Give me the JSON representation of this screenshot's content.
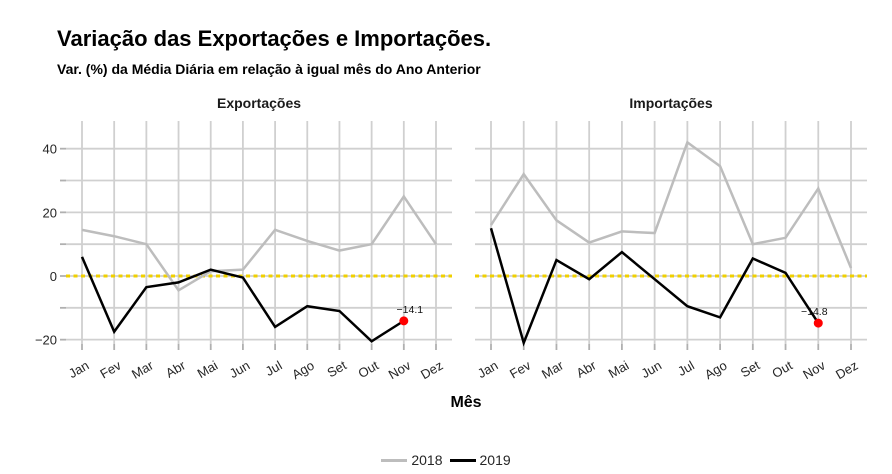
{
  "title": "Variação das Exportações e Importações.",
  "subtitle": "Var. (%) da Média Diária em relação à igual mês do Ano Anterior",
  "chart_data": {
    "type": "line",
    "categories": [
      "Jan",
      "Fev",
      "Mar",
      "Abr",
      "Mai",
      "Jun",
      "Jul",
      "Ago",
      "Set",
      "Out",
      "Nov",
      "Dez"
    ],
    "xlabel": "Mês",
    "facets": [
      {
        "label": "Exportações",
        "series": [
          {
            "name": "2018",
            "values": [
              14.5,
              12.5,
              10,
              -4.5,
              1.5,
              2,
              14.5,
              11,
              8,
              10,
              25,
              10
            ]
          },
          {
            "name": "2019",
            "values": [
              6,
              -17.5,
              -3.5,
              -2,
              2,
              -0.5,
              -16,
              -9.5,
              -11,
              -20.5,
              -14.1,
              null
            ]
          }
        ],
        "highlight": {
          "month": "Nov",
          "series": "2019",
          "value": -14.1,
          "label": "−14.1"
        }
      },
      {
        "label": "Importações",
        "series": [
          {
            "name": "2018",
            "values": [
              16,
              32,
              17.5,
              10.5,
              14,
              13.5,
              42,
              34.5,
              10,
              12,
              27.5,
              2.5
            ]
          },
          {
            "name": "2019",
            "values": [
              15,
              -21,
              5,
              -1,
              7.5,
              -1,
              -9.5,
              -13,
              5.5,
              1,
              -14.8,
              null
            ]
          }
        ],
        "highlight": {
          "month": "Nov",
          "series": "2019",
          "value": -14.8,
          "label": "−14.8"
        }
      }
    ],
    "series_colors": {
      "2018": "#bdbdbd",
      "2019": "#000000"
    },
    "highlight_color": "#ff0000",
    "reference_line": {
      "value": 0,
      "color": "#f0d000",
      "style": "dashed"
    },
    "y_axis": {
      "gridline_values": [
        -20,
        -10,
        0,
        10,
        20,
        30,
        40
      ],
      "tick_labels": [
        {
          "value": 40,
          "label": "40"
        },
        {
          "value": 20,
          "label": "20"
        },
        {
          "value": 0,
          "label": "0"
        },
        {
          "value": -20,
          "label": "−20"
        }
      ],
      "range": [
        -21.5,
        48.5
      ]
    },
    "grid": true,
    "legend": {
      "position": "bottom",
      "entries": [
        {
          "label": "2018",
          "color": "#bdbdbd"
        },
        {
          "label": "2019",
          "color": "#000000"
        }
      ]
    }
  }
}
